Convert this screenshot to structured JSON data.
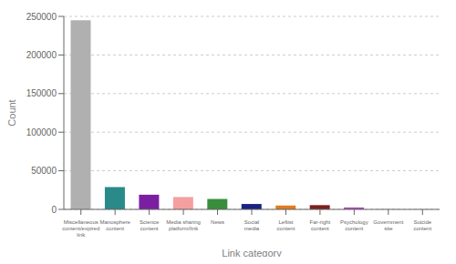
{
  "chart_data": {
    "type": "bar",
    "categories": [
      "Miscellaneous\ncontent/expired\nlink",
      "Manosphere\ncontent",
      "Science\ncontent",
      "Media sharing\nplatform/link",
      "News",
      "Social\nmedia",
      "Leftist\ncontent",
      "Far-right\ncontent",
      "Psychology\ncontent",
      "Government\nsite",
      "Suicide\ncontent"
    ],
    "values": [
      245000,
      29000,
      19000,
      16000,
      13500,
      7000,
      5000,
      5500,
      2500,
      300,
      200
    ],
    "colors": [
      "#b0b0b0",
      "#2a8a8a",
      "#7b1fa2",
      "#f4a0a0",
      "#388e3c",
      "#1a237e",
      "#e07b20",
      "#7b2020",
      "#ab47bc",
      "#c0c0c0",
      "#c0c0c0"
    ],
    "xlabel": "Link category",
    "ylabel": "Count",
    "ylim": [
      0,
      250000
    ],
    "yticks": [
      0,
      50000,
      100000,
      150000,
      200000,
      250000
    ],
    "grid": true
  }
}
